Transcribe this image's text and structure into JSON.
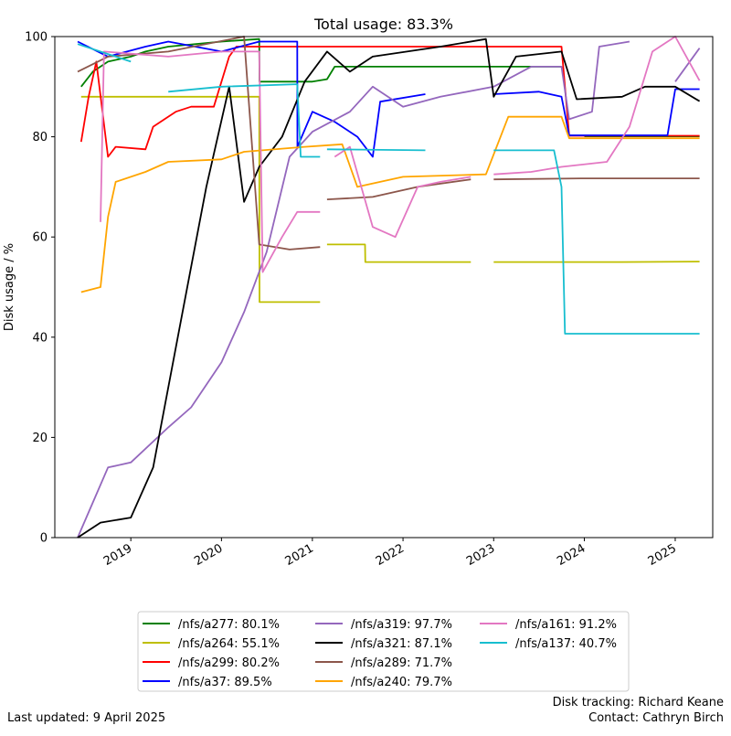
{
  "chart_data": {
    "type": "line",
    "title": "Total usage: 83.3%",
    "xlabel": "",
    "ylabel": "Disk usage  /  %",
    "xlim": [
      "2018-03-01",
      "2025-06-01"
    ],
    "ylim": [
      0,
      100
    ],
    "yticks": [
      0,
      20,
      40,
      60,
      80,
      100
    ],
    "xticks": [
      {
        "date": "2019-01-01",
        "label": "2019"
      },
      {
        "date": "2020-01-01",
        "label": "2020"
      },
      {
        "date": "2021-01-01",
        "label": "2021"
      },
      {
        "date": "2022-01-01",
        "label": "2022"
      },
      {
        "date": "2023-01-01",
        "label": "2023"
      },
      {
        "date": "2024-01-01",
        "label": "2024"
      },
      {
        "date": "2025-01-01",
        "label": "2025"
      }
    ],
    "grid": false,
    "legend_position": "below",
    "series": [
      {
        "name": "/nfs/a277: 80.1%",
        "color": "#008000",
        "points": [
          [
            "2018-06-15",
            90
          ],
          [
            "2018-08-01",
            93
          ],
          [
            "2018-10-01",
            95
          ],
          [
            "2019-01-01",
            96
          ],
          [
            "2019-03-01",
            97
          ],
          [
            "2019-06-01",
            98
          ],
          [
            "2020-01-01",
            99
          ],
          [
            "2020-06-01",
            99.5
          ],
          [
            "2020-06-02",
            91
          ],
          [
            "2021-01-01",
            91
          ],
          [
            "2021-03-01",
            91.5
          ],
          [
            "2021-04-01",
            94
          ],
          [
            "2022-06-01",
            94
          ],
          [
            "2023-06-01",
            94
          ],
          [
            "2023-10-01",
            94
          ],
          null,
          [
            "2024-01-01",
            80.1
          ],
          [
            "2025-04-09",
            80.1
          ]
        ]
      },
      {
        "name": "/nfs/a264: 55.1%",
        "color": "#bfbf00",
        "points": [
          [
            "2018-06-15",
            88
          ],
          [
            "2019-06-01",
            88
          ],
          [
            "2020-06-01",
            88
          ],
          [
            "2020-06-02",
            47
          ],
          [
            "2020-08-01",
            47
          ],
          [
            "2021-02-01",
            47
          ],
          null,
          [
            "2021-03-01",
            58.5
          ],
          [
            "2021-08-01",
            58.5
          ],
          [
            "2021-08-02",
            55
          ],
          [
            "2022-06-01",
            55
          ],
          [
            "2022-10-01",
            55
          ],
          null,
          [
            "2023-01-01",
            55
          ],
          [
            "2024-06-01",
            55
          ],
          [
            "2025-04-09",
            55.1
          ]
        ]
      },
      {
        "name": "/nfs/a299: 80.2%",
        "color": "#ff0000",
        "points": [
          [
            "2018-06-15",
            79
          ],
          [
            "2018-07-15",
            88
          ],
          [
            "2018-08-15",
            95
          ],
          [
            "2018-10-01",
            76
          ],
          [
            "2018-11-01",
            78
          ],
          [
            "2019-03-01",
            77.5
          ],
          [
            "2019-04-01",
            82
          ],
          [
            "2019-07-01",
            85
          ],
          [
            "2019-09-01",
            86
          ],
          [
            "2019-12-01",
            86
          ],
          [
            "2020-02-01",
            96
          ],
          [
            "2020-03-01",
            98
          ],
          [
            "2021-01-01",
            98
          ],
          [
            "2022-06-01",
            98
          ],
          [
            "2023-10-01",
            98
          ],
          [
            "2023-11-01",
            80.2
          ],
          [
            "2025-04-09",
            80.2
          ]
        ]
      },
      {
        "name": "/nfs/a37: 89.5%",
        "color": "#0000ff",
        "points": [
          [
            "2018-06-01",
            99
          ],
          [
            "2018-10-01",
            96
          ],
          [
            "2019-03-01",
            98
          ],
          [
            "2019-06-01",
            99
          ],
          [
            "2020-01-01",
            97
          ],
          [
            "2020-06-01",
            99
          ],
          [
            "2020-11-01",
            99
          ],
          [
            "2020-11-02",
            78
          ],
          [
            "2021-01-01",
            85
          ],
          [
            "2021-04-01",
            83
          ],
          [
            "2021-07-01",
            80
          ],
          [
            "2021-09-01",
            76
          ],
          [
            "2021-10-01",
            87
          ],
          [
            "2022-04-01",
            88.5
          ],
          null,
          [
            "2023-01-01",
            88.5
          ],
          [
            "2023-07-01",
            89
          ],
          [
            "2023-10-01",
            88
          ],
          [
            "2023-11-01",
            80.3
          ],
          [
            "2024-12-01",
            80.3
          ],
          [
            "2025-01-01",
            89.5
          ],
          [
            "2025-04-09",
            89.5
          ]
        ]
      },
      {
        "name": "/nfs/a319: 97.7%",
        "color": "#9467bd",
        "points": [
          [
            "2018-06-01",
            0
          ],
          [
            "2018-08-01",
            7
          ],
          [
            "2018-10-01",
            14
          ],
          [
            "2019-01-01",
            15
          ],
          [
            "2019-06-01",
            22
          ],
          [
            "2019-09-01",
            26
          ],
          [
            "2020-01-01",
            35
          ],
          [
            "2020-04-01",
            45
          ],
          [
            "2020-07-01",
            57
          ],
          [
            "2020-10-01",
            76
          ],
          [
            "2021-01-01",
            81
          ],
          [
            "2021-06-01",
            85
          ],
          [
            "2021-09-01",
            90
          ],
          [
            "2022-01-01",
            86
          ],
          [
            "2022-06-01",
            88
          ],
          [
            "2023-01-01",
            90
          ],
          [
            "2023-06-01",
            94
          ],
          [
            "2023-10-01",
            94
          ],
          [
            "2023-11-01",
            83.5
          ],
          [
            "2024-02-01",
            85
          ],
          [
            "2024-03-01",
            98
          ],
          [
            "2024-07-01",
            99
          ],
          null,
          [
            "2025-01-01",
            91
          ],
          [
            "2025-04-09",
            97.7
          ]
        ]
      },
      {
        "name": "/nfs/a321: 87.1%",
        "color": "#000000",
        "points": [
          [
            "2018-06-01",
            0
          ],
          [
            "2018-09-01",
            3
          ],
          [
            "2019-01-01",
            4
          ],
          [
            "2019-04-01",
            14
          ],
          [
            "2019-08-01",
            46
          ],
          [
            "2019-11-01",
            70
          ],
          [
            "2020-02-01",
            90
          ],
          [
            "2020-04-01",
            67
          ],
          [
            "2020-06-01",
            74
          ],
          [
            "2020-09-01",
            80
          ],
          [
            "2020-12-01",
            91
          ],
          [
            "2021-03-01",
            97
          ],
          [
            "2021-06-01",
            93
          ],
          [
            "2021-09-01",
            96
          ],
          [
            "2022-06-01",
            98
          ],
          [
            "2022-12-01",
            99.5
          ],
          [
            "2023-01-01",
            88
          ],
          [
            "2023-04-01",
            96
          ],
          [
            "2023-10-01",
            97
          ],
          [
            "2023-12-01",
            87.5
          ],
          [
            "2024-06-01",
            88
          ],
          [
            "2024-09-01",
            90
          ],
          [
            "2025-01-01",
            90
          ],
          [
            "2025-04-09",
            87.1
          ]
        ]
      },
      {
        "name": "/nfs/a289: 71.7%",
        "color": "#8c564b",
        "points": [
          [
            "2018-06-01",
            93
          ],
          [
            "2018-10-01",
            96
          ],
          [
            "2019-06-01",
            97
          ],
          [
            "2020-04-01",
            100
          ],
          [
            "2020-06-01",
            58.5
          ],
          [
            "2020-10-01",
            57.5
          ],
          [
            "2021-02-01",
            58
          ],
          null,
          [
            "2021-03-01",
            67.5
          ],
          [
            "2021-09-01",
            68
          ],
          [
            "2022-03-01",
            70
          ],
          [
            "2022-10-01",
            71.5
          ],
          null,
          [
            "2023-01-01",
            71.5
          ],
          [
            "2024-01-01",
            71.7
          ],
          [
            "2025-04-09",
            71.7
          ]
        ]
      },
      {
        "name": "/nfs/a240: 79.7%",
        "color": "#ffa500",
        "points": [
          [
            "2018-06-15",
            49
          ],
          [
            "2018-09-01",
            50
          ],
          [
            "2018-10-01",
            64
          ],
          [
            "2018-11-01",
            71
          ],
          [
            "2019-03-01",
            73
          ],
          [
            "2019-06-01",
            75
          ],
          [
            "2020-01-01",
            75.5
          ],
          [
            "2020-04-01",
            77
          ],
          [
            "2020-12-01",
            78
          ],
          [
            "2021-05-01",
            78.5
          ],
          [
            "2021-07-01",
            70
          ],
          [
            "2022-01-01",
            72
          ],
          [
            "2022-12-01",
            72.5
          ],
          [
            "2023-03-01",
            84
          ],
          [
            "2023-10-01",
            84
          ],
          [
            "2023-11-01",
            79.7
          ],
          [
            "2025-04-09",
            79.7
          ]
        ]
      },
      {
        "name": "/nfs/a161: 91.2%",
        "color": "#e377c2",
        "points": [
          [
            "2018-09-01",
            63
          ],
          [
            "2018-09-15",
            97
          ],
          [
            "2019-06-01",
            96
          ],
          [
            "2020-01-01",
            97
          ],
          [
            "2020-06-01",
            97
          ],
          [
            "2020-06-15",
            53
          ],
          [
            "2020-09-01",
            60
          ],
          [
            "2020-11-01",
            65
          ],
          [
            "2021-02-01",
            65
          ],
          null,
          [
            "2021-04-01",
            76
          ],
          [
            "2021-06-01",
            78
          ],
          [
            "2021-09-01",
            62
          ],
          [
            "2021-12-01",
            60
          ],
          [
            "2022-03-01",
            70
          ],
          [
            "2022-06-01",
            71
          ],
          [
            "2022-10-01",
            72
          ],
          null,
          [
            "2023-01-01",
            72.5
          ],
          [
            "2023-06-01",
            73
          ],
          [
            "2023-10-01",
            74
          ],
          [
            "2024-04-01",
            75
          ],
          [
            "2024-07-01",
            82
          ],
          [
            "2024-10-01",
            97
          ],
          [
            "2025-01-01",
            100
          ],
          [
            "2025-04-09",
            91.2
          ]
        ]
      },
      {
        "name": "/nfs/a137: 40.7%",
        "color": "#17becf",
        "points": [
          [
            "2018-06-01",
            98.5
          ],
          [
            "2018-11-01",
            96
          ],
          [
            "2019-01-01",
            95
          ],
          null,
          [
            "2019-06-01",
            89
          ],
          [
            "2020-01-01",
            90
          ],
          [
            "2020-11-01",
            90.5
          ],
          [
            "2020-11-15",
            76
          ],
          [
            "2021-02-01",
            76
          ],
          null,
          [
            "2021-03-01",
            77.5
          ],
          [
            "2022-04-01",
            77.3
          ],
          null,
          [
            "2023-01-01",
            77.3
          ],
          [
            "2023-09-01",
            77.3
          ],
          [
            "2023-10-01",
            70
          ],
          [
            "2023-10-15",
            40.7
          ],
          [
            "2025-04-09",
            40.7
          ]
        ]
      }
    ]
  },
  "footer": {
    "last_updated": "Last updated: 9 April 2025",
    "tracking": "Disk tracking: Richard Keane",
    "contact": "Contact: Cathryn Birch"
  }
}
